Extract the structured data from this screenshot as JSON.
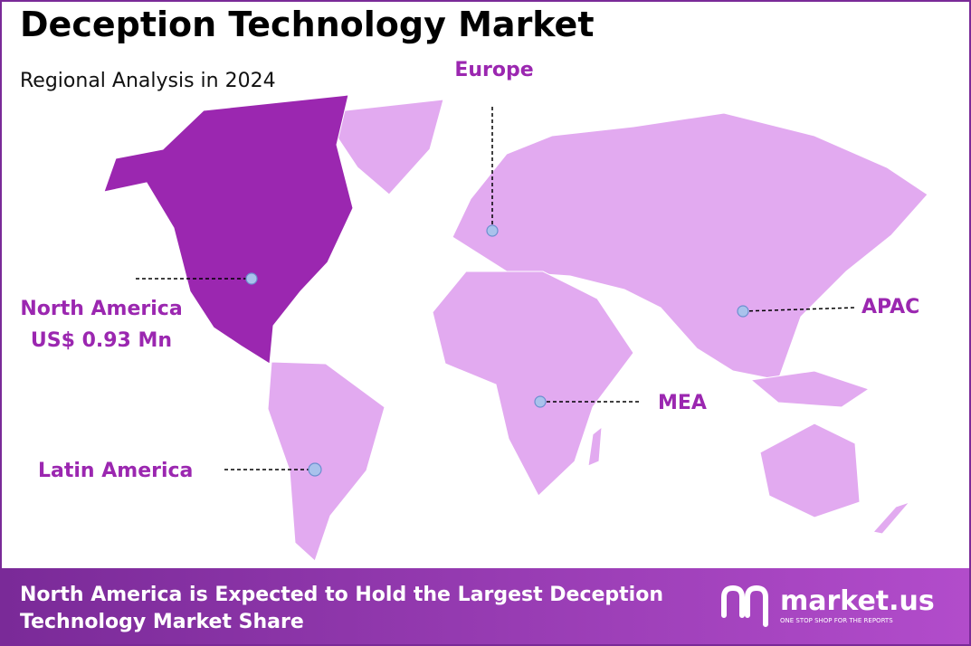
{
  "header": {
    "title": "Deception Technology Market",
    "subtitle": "Regional Analysis in 2024"
  },
  "regions": [
    {
      "label": "North America",
      "value": "US$ 0.93 Mn"
    },
    {
      "label": "Europe"
    },
    {
      "label": "APAC"
    },
    {
      "label": "MEA"
    },
    {
      "label": "Latin America"
    }
  ],
  "footer": {
    "text_line1": "North America is Expected to Hold the Largest Deception",
    "text_line2": "Technology Market Share"
  },
  "logo": {
    "name": "market.us",
    "tagline": "ONE STOP SHOP FOR THE REPORTS"
  }
}
